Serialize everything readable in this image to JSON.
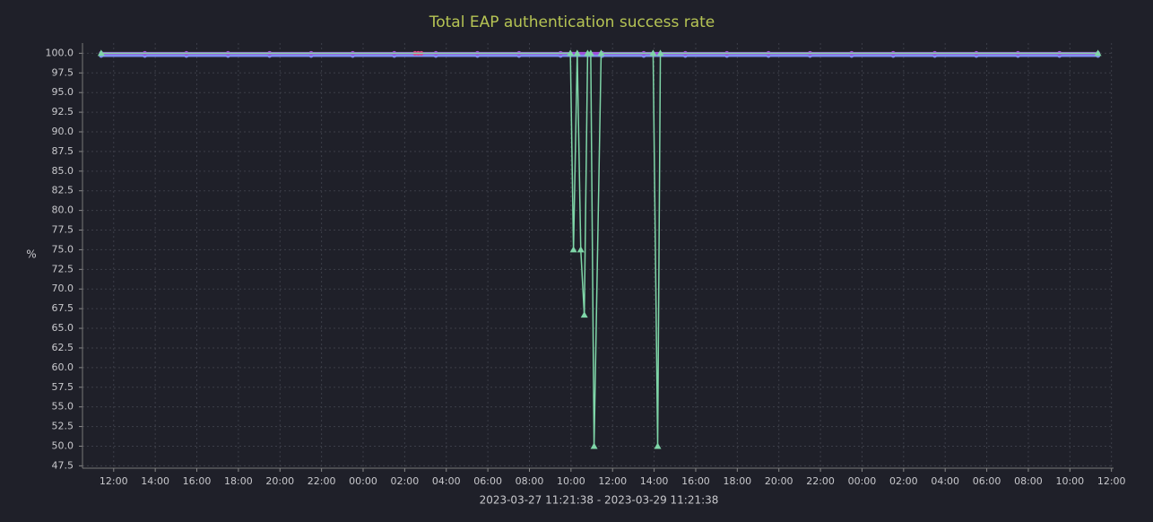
{
  "chart_data": {
    "type": "line",
    "title": "Total EAP authentication success rate",
    "ylabel": "%",
    "xlabel": "2023-03-27 11:21:38 - 2023-03-29 11:21:38",
    "xlim": [
      10.5,
      60.1
    ],
    "ylim": [
      47.2,
      101.3
    ],
    "grid": true,
    "xticks": [
      {
        "value": 12,
        "label": "12:00"
      },
      {
        "value": 14,
        "label": "14:00"
      },
      {
        "value": 16,
        "label": "16:00"
      },
      {
        "value": 18,
        "label": "18:00"
      },
      {
        "value": 20,
        "label": "20:00"
      },
      {
        "value": 22,
        "label": "22:00"
      },
      {
        "value": 24,
        "label": "00:00"
      },
      {
        "value": 26,
        "label": "02:00"
      },
      {
        "value": 28,
        "label": "04:00"
      },
      {
        "value": 30,
        "label": "06:00"
      },
      {
        "value": 32,
        "label": "08:00"
      },
      {
        "value": 34,
        "label": "10:00"
      },
      {
        "value": 36,
        "label": "12:00"
      },
      {
        "value": 38,
        "label": "14:00"
      },
      {
        "value": 40,
        "label": "16:00"
      },
      {
        "value": 42,
        "label": "18:00"
      },
      {
        "value": 44,
        "label": "20:00"
      },
      {
        "value": 46,
        "label": "22:00"
      },
      {
        "value": 48,
        "label": "00:00"
      },
      {
        "value": 50,
        "label": "02:00"
      },
      {
        "value": 52,
        "label": "04:00"
      },
      {
        "value": 54,
        "label": "06:00"
      },
      {
        "value": 56,
        "label": "08:00"
      },
      {
        "value": 58,
        "label": "10:00"
      },
      {
        "value": 60,
        "label": "12:00"
      }
    ],
    "yticks": [
      47.5,
      {
        "value": 50,
        "label": "50.0"
      },
      52.5,
      {
        "value": 55,
        "label": "55.0"
      },
      57.5,
      {
        "value": 60,
        "label": "60.0"
      },
      62.5,
      {
        "value": 65,
        "label": "65.0"
      },
      67.5,
      {
        "value": 70,
        "label": "70.0"
      },
      72.5,
      {
        "value": 75,
        "label": "75.0"
      },
      77.5,
      {
        "value": 80,
        "label": "80.0"
      },
      82.5,
      {
        "value": 85,
        "label": "85.0"
      },
      87.5,
      {
        "value": 90,
        "label": "90.0"
      },
      92.5,
      {
        "value": 95,
        "label": "95.0"
      },
      97.5,
      {
        "value": 100,
        "label": "100.0"
      }
    ],
    "series": [
      {
        "color": "#7f8ff2",
        "marker": "circle",
        "x": [
          11.4,
          13.5,
          15.5,
          17.5,
          19.5,
          21.5,
          23.5,
          25.5,
          27.5,
          29.5,
          31.5,
          33.5,
          35.5,
          37.5,
          39.5,
          41.5,
          43.5,
          45.5,
          47.5,
          49.5,
          51.5,
          53.5,
          55.5,
          57.5,
          59.35
        ],
        "values": [
          99.7,
          99.7,
          99.7,
          99.7,
          99.7,
          99.7,
          99.7,
          99.7,
          99.7,
          99.7,
          99.7,
          99.7,
          99.7,
          99.7,
          99.7,
          99.7,
          99.7,
          99.7,
          99.7,
          99.7,
          99.7,
          99.7,
          99.7,
          99.7,
          99.7
        ]
      },
      {
        "color": "#a050d8",
        "marker": "circle",
        "x": [
          11.4,
          13.5,
          15.5,
          17.5,
          19.5,
          21.5,
          23.5,
          25.5,
          27.5,
          29.5,
          31.5,
          33.5,
          35.5,
          37.5,
          39.5,
          41.5,
          43.5,
          45.5,
          47.5,
          49.5,
          51.5,
          53.5,
          55.5,
          57.5,
          59.35
        ],
        "values": [
          100,
          100,
          100,
          100,
          100,
          100,
          100,
          100,
          100,
          100,
          100,
          100,
          100,
          100,
          100,
          100,
          100,
          100,
          100,
          100,
          100,
          100,
          100,
          100,
          100
        ]
      },
      {
        "color": "#e0408a",
        "marker": "circle",
        "x": [
          26.5,
          26.65,
          26.8
        ],
        "values": [
          100,
          100,
          100
        ]
      },
      {
        "color": "#7fd6a8",
        "marker": "triangle",
        "x": [
          11.4,
          33.97,
          34.12,
          34.3,
          34.47,
          34.64,
          34.8,
          34.95,
          35.11,
          35.45,
          37.95,
          38.17,
          38.3,
          59.35
        ],
        "values": [
          100,
          100,
          75,
          100,
          75,
          66.7,
          100,
          100,
          50,
          100,
          100,
          50,
          100,
          100
        ]
      }
    ]
  }
}
